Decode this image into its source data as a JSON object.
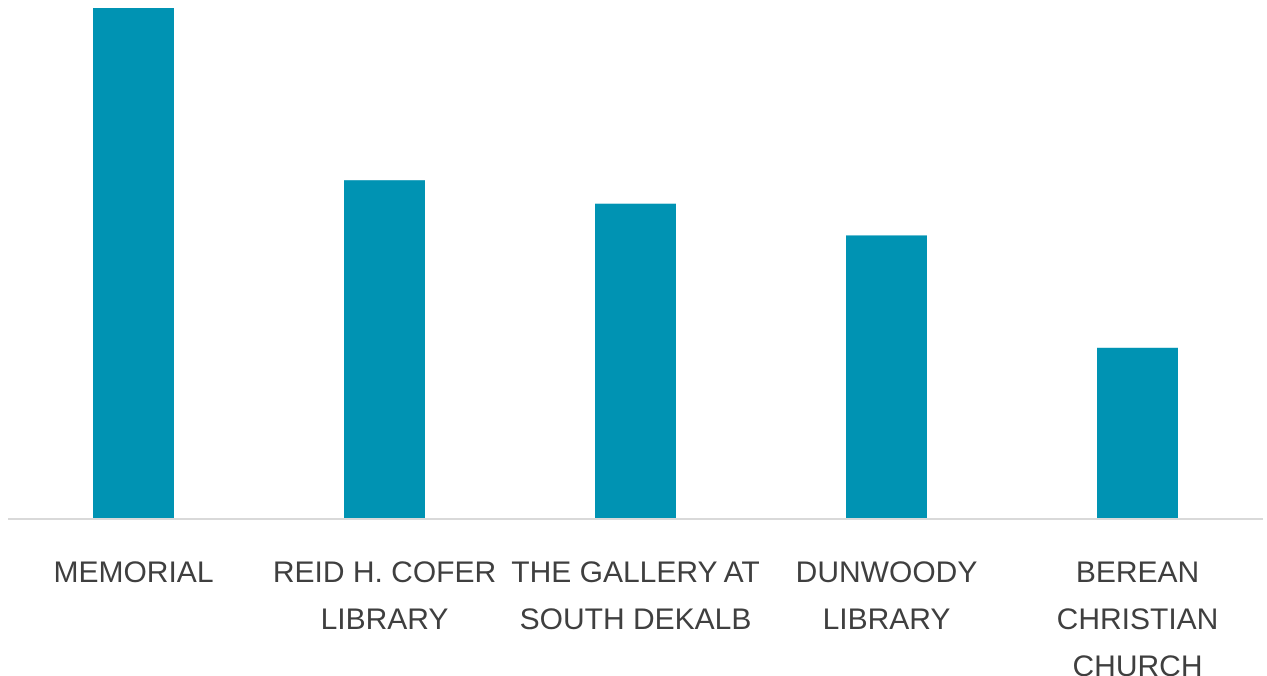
{
  "chart_data": {
    "type": "bar",
    "title": "",
    "xlabel": "",
    "ylabel": "",
    "categories": [
      [
        "MEMORIAL"
      ],
      [
        "REID H. COFER",
        "LIBRARY"
      ],
      [
        "THE GALLERY AT",
        "SOUTH DEKALB"
      ],
      [
        "DUNWOODY",
        "LIBRARY"
      ],
      [
        "BEREAN",
        "CHRISTIAN",
        "CHURCH"
      ]
    ],
    "values": [
      100,
      66.3,
      61.7,
      55.5,
      33.5
    ],
    "ylim": [
      0,
      100
    ],
    "grid": false,
    "legend": "none",
    "bar_color": "#0093B3",
    "axis_color": "#D9D9D9",
    "label_color": "#3F3F3F"
  }
}
